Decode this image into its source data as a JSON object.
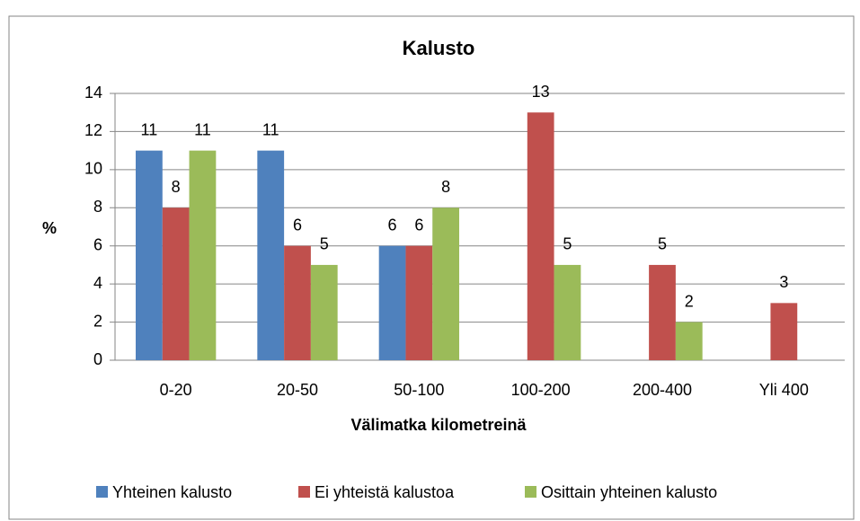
{
  "chart_data": {
    "type": "bar",
    "title": "Kalusto",
    "x_label": "Välimatka kilometreinä",
    "y_label": "%",
    "categories": [
      "0-20",
      "20-50",
      "50-100",
      "100-200",
      "200-400",
      "Yli 400"
    ],
    "series": [
      {
        "name": "Yhteinen kalusto",
        "color": "#4f81bd",
        "values": [
          11,
          11,
          6,
          null,
          null,
          null
        ]
      },
      {
        "name": "Ei yhteistä kalustoa",
        "color": "#c0504d",
        "values": [
          8,
          6,
          6,
          13,
          5,
          3
        ]
      },
      {
        "name": "Osittain yhteinen kalusto",
        "color": "#9bbb59",
        "values": [
          11,
          5,
          8,
          5,
          2,
          null
        ]
      }
    ],
    "ylim": [
      0,
      14
    ],
    "yticks": [
      0,
      2,
      4,
      6,
      8,
      10,
      12,
      14
    ],
    "grid": true,
    "legend": "bottom"
  }
}
